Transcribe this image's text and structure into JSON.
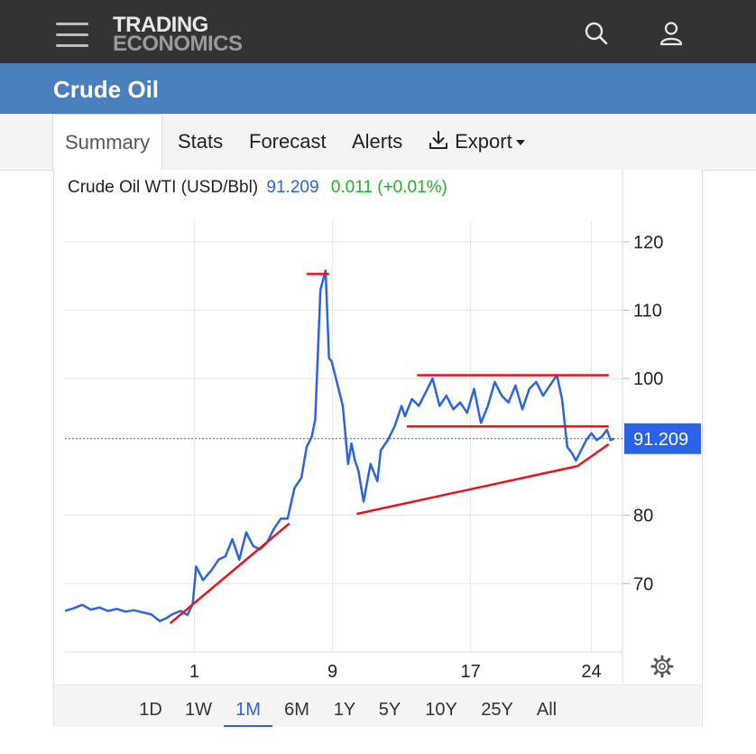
{
  "header": {
    "logo_line1": "TRADING",
    "logo_line2": "ECONOMICS"
  },
  "page_title": "Crude Oil",
  "tabs": [
    {
      "label": "Summary",
      "active": true
    },
    {
      "label": "Stats"
    },
    {
      "label": "Forecast"
    },
    {
      "label": "Alerts"
    },
    {
      "label": "Export"
    }
  ],
  "quote": {
    "name": "Crude Oil WTI (USD/Bbl)",
    "price": "91.209",
    "change": "0.011 (+0.01%)"
  },
  "ranges": [
    "1D",
    "1W",
    "1M",
    "6M",
    "1Y",
    "5Y",
    "10Y",
    "25Y",
    "All"
  ],
  "active_range": "1M",
  "colors": {
    "topbar": "#333333",
    "titlebar": "#4a7fbe",
    "series": "#2b62e8",
    "annotation": "#e8141a",
    "positive": "#22b02b"
  },
  "chart_data": {
    "type": "line",
    "title": "",
    "xlabel": "",
    "ylabel": "",
    "ylim": [
      60,
      125
    ],
    "yticks": [
      "120",
      "110",
      "100",
      "80",
      "70"
    ],
    "xtick_labels": [
      "1",
      "9",
      "17",
      "24"
    ],
    "xlim": [
      -6.5,
      25.8
    ],
    "xtick_values": [
      1,
      9,
      17,
      24
    ],
    "current_value_label": "91.209",
    "current_value": 91.209,
    "series": [
      {
        "x": [
          -6.5,
          -6.0,
          -5.5,
          -5.0,
          -4.5,
          -4.0,
          -3.5,
          -3.0,
          -2.5,
          -2.0,
          -1.5,
          -1.0,
          -0.6,
          -0.3,
          0.2,
          0.6,
          0.9,
          1.1,
          1.5,
          2.0,
          2.4,
          2.8,
          3.2,
          3.6,
          4.0,
          4.4,
          4.8,
          5.2,
          5.6,
          6.0,
          6.4,
          6.8,
          7.2,
          7.5,
          7.8,
          8.0,
          8.3,
          8.6,
          8.8,
          8.95,
          9.1,
          9.3,
          9.6,
          9.9,
          10.1,
          10.3,
          10.5,
          10.8,
          11.2,
          11.6,
          11.8,
          12.2,
          12.6,
          13.0,
          13.2,
          13.6,
          14.0,
          14.4,
          14.8,
          15.2,
          15.6,
          16.0,
          16.4,
          16.8,
          17.2,
          17.6,
          18.0,
          18.4,
          18.8,
          19.2,
          19.6,
          20.0,
          20.4,
          20.8,
          21.2,
          21.6,
          22.0,
          22.3,
          22.6,
          22.9,
          23.1,
          23.4,
          23.7,
          24.0,
          24.3,
          24.6,
          24.9,
          25.1,
          25.3
        ],
        "y": [
          66.0,
          66.4,
          66.9,
          66.2,
          66.5,
          66.0,
          66.3,
          65.9,
          66.1,
          65.8,
          65.5,
          64.5,
          65.0,
          65.5,
          66.0,
          65.4,
          67.0,
          72.5,
          70.5,
          72.0,
          73.5,
          74.0,
          76.5,
          73.5,
          77.5,
          75.5,
          75.0,
          76.0,
          78.0,
          79.5,
          79.5,
          84.0,
          85.5,
          90.0,
          91.5,
          94.0,
          113.0,
          115.8,
          103.0,
          102.5,
          101.0,
          99.0,
          96.0,
          87.5,
          90.5,
          88.0,
          86.5,
          82.0,
          87.5,
          85.0,
          89.5,
          91.0,
          93.0,
          96.0,
          94.5,
          97.0,
          96.0,
          98.0,
          100.0,
          96.0,
          97.5,
          95.5,
          96.5,
          95.0,
          98.5,
          93.5,
          96.0,
          99.5,
          97.5,
          96.5,
          99.0,
          95.5,
          98.5,
          99.5,
          97.5,
          99.0,
          100.5,
          97.0,
          90.0,
          89.0,
          88.0,
          89.5,
          91.0,
          92.0,
          91.0,
          91.5,
          92.5,
          91.0,
          91.209
        ]
      }
    ],
    "annotations": [
      {
        "kind": "trendline",
        "from": [
          -0.4,
          64.2
        ],
        "to": [
          6.5,
          78.8
        ]
      },
      {
        "kind": "horizontal",
        "y": 115.3,
        "x": [
          7.5,
          8.8
        ]
      },
      {
        "kind": "trendline",
        "from": [
          10.4,
          80.2
        ],
        "to": [
          23.2,
          87.2
        ]
      },
      {
        "kind": "trendline",
        "from": [
          23.2,
          87.2
        ],
        "to": [
          25.0,
          90.4
        ]
      },
      {
        "kind": "horizontal",
        "y": 100.5,
        "x": [
          13.9,
          25.0
        ]
      },
      {
        "kind": "horizontal",
        "y": 93.0,
        "x": [
          13.3,
          25.0
        ]
      }
    ]
  }
}
